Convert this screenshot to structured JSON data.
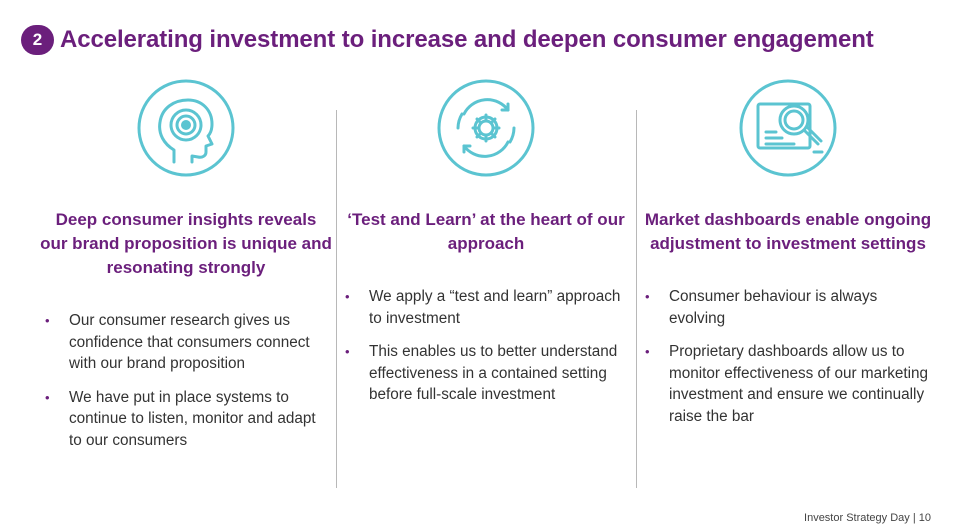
{
  "header": {
    "number": "2",
    "title": "Accelerating investment to increase and deepen consumer engagement"
  },
  "columns": [
    {
      "icon": "head-target-icon",
      "heading": "Deep consumer insights reveals our brand proposition is unique and resonating strongly",
      "bullets": [
        "Our consumer research gives us confidence that consumers connect with our brand proposition",
        "We have put in place systems to continue to listen, monitor and adapt to our consumers"
      ]
    },
    {
      "icon": "gear-cycle-icon",
      "heading": "‘Test and Learn’ at the heart of our approach",
      "bullets": [
        "We apply a “test and learn” approach to investment",
        "This enables us to better understand effectiveness in a contained setting before full-scale investment"
      ]
    },
    {
      "icon": "magnifier-dashboard-icon",
      "heading": "Market dashboards enable ongoing adjustment to investment settings",
      "bullets": [
        "Consumer behaviour is always evolving",
        "Proprietary dashboards allow us to monitor effectiveness of our marketing investment and ensure we continually raise the bar"
      ]
    }
  ],
  "footer": {
    "text": "Investor Strategy Day | 10"
  },
  "colors": {
    "accent": "#6b1f7c",
    "icon": "#5bc4d1"
  }
}
